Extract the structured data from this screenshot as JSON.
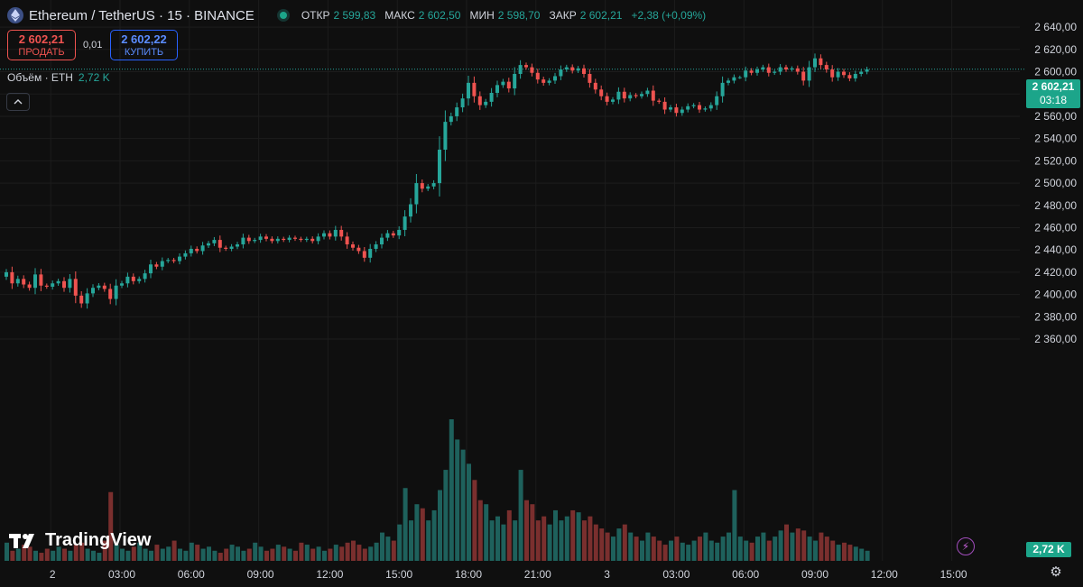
{
  "header": {
    "symbol": "Ethereum / TetherUS · 15 · BINANCE",
    "ohlc": [
      {
        "key": "ОТКР",
        "value": "2 599,83"
      },
      {
        "key": "МАКС",
        "value": "2 602,50"
      },
      {
        "key": "МИН",
        "value": "2 598,70"
      },
      {
        "key": "ЗАКР",
        "value": "2 602,21"
      }
    ],
    "change": "+2,38 (+0,09%)"
  },
  "trade": {
    "sell_price": "2 602,21",
    "sell_label": "ПРОДАТЬ",
    "spread": "0,01",
    "buy_price": "2 602,22",
    "buy_label": "КУПИТЬ"
  },
  "volume_legend": {
    "label": "Объём · ETH",
    "value": "2,72 K"
  },
  "last_price": {
    "price": "2 602,21",
    "countdown": "03:18"
  },
  "volume_badge": "2,72 K",
  "watermark": "TradingView",
  "colors": {
    "up": "#26a69a",
    "down": "#ef5350",
    "background": "#0f0f0f"
  },
  "chart_data": {
    "type": "candlestick",
    "ylim": [
      2345,
      2645
    ],
    "y_ticks": [
      2360,
      2380,
      2400,
      2420,
      2440,
      2460,
      2480,
      2500,
      2520,
      2540,
      2560,
      2580,
      2600,
      2620,
      2640
    ],
    "y_tick_labels": [
      "2 360,00",
      "2 380,00",
      "2 400,00",
      "2 420,00",
      "2 440,00",
      "2 460,00",
      "2 480,00",
      "2 500,00",
      "2 520,00",
      "2 540,00",
      "2 560,00",
      "2 580,00",
      "2 600,00",
      "2 620,00",
      "2 640,00"
    ],
    "x_tick_labels": [
      {
        "label": "2",
        "bar": 8
      },
      {
        "label": "03:00",
        "bar": 20
      },
      {
        "label": "06:00",
        "bar": 32
      },
      {
        "label": "09:00",
        "bar": 44
      },
      {
        "label": "12:00",
        "bar": 56
      },
      {
        "label": "15:00",
        "bar": 68
      },
      {
        "label": "18:00",
        "bar": 80
      },
      {
        "label": "21:00",
        "bar": 92
      },
      {
        "label": "3",
        "bar": 104
      },
      {
        "label": "03:00",
        "bar": 116
      },
      {
        "label": "06:00",
        "bar": 128
      },
      {
        "label": "09:00",
        "bar": 140
      },
      {
        "label": "12:00",
        "bar": 152
      },
      {
        "label": "15:00",
        "bar": 164
      }
    ],
    "close_line": 2602.21,
    "closes": [
      2420,
      2410,
      2414,
      2409,
      2406,
      2418,
      2408,
      2407,
      2410,
      2412,
      2406,
      2414,
      2399,
      2392,
      2401,
      2406,
      2408,
      2405,
      2396,
      2408,
      2410,
      2416,
      2412,
      2414,
      2419,
      2427,
      2425,
      2430,
      2431,
      2430,
      2434,
      2437,
      2441,
      2439,
      2444,
      2446,
      2449,
      2442,
      2441,
      2443,
      2445,
      2451,
      2448,
      2449,
      2452,
      2450,
      2448,
      2450,
      2449,
      2451,
      2450,
      2449,
      2450,
      2448,
      2452,
      2455,
      2452,
      2458,
      2452,
      2445,
      2442,
      2439,
      2433,
      2441,
      2445,
      2451,
      2455,
      2453,
      2458,
      2470,
      2481,
      2500,
      2495,
      2497,
      2500,
      2530,
      2555,
      2560,
      2568,
      2576,
      2590,
      2578,
      2570,
      2573,
      2581,
      2588,
      2591,
      2585,
      2598,
      2606,
      2604,
      2599,
      2593,
      2590,
      2592,
      2596,
      2602,
      2604,
      2601,
      2603,
      2598,
      2590,
      2584,
      2578,
      2573,
      2575,
      2582,
      2576,
      2579,
      2578,
      2580,
      2583,
      2574,
      2573,
      2566,
      2568,
      2563,
      2566,
      2569,
      2570,
      2566,
      2567,
      2570,
      2578,
      2590,
      2592,
      2595,
      2595,
      2601,
      2599,
      2602,
      2604,
      2599,
      2600,
      2604,
      2602,
      2603,
      2600,
      2592,
      2604,
      2612,
      2606,
      2602,
      2595,
      2600,
      2597,
      2594,
      2598,
      2600,
      2602.21
    ],
    "volumes": [
      9,
      5,
      6,
      8,
      7,
      5,
      4,
      6,
      5,
      7,
      6,
      5,
      8,
      9,
      6,
      5,
      4,
      10,
      34,
      8,
      6,
      5,
      7,
      9,
      6,
      5,
      8,
      6,
      7,
      10,
      6,
      5,
      9,
      8,
      6,
      7,
      5,
      4,
      6,
      8,
      7,
      5,
      6,
      9,
      7,
      5,
      6,
      8,
      7,
      6,
      5,
      9,
      8,
      6,
      7,
      5,
      6,
      8,
      7,
      9,
      10,
      8,
      6,
      7,
      9,
      14,
      12,
      10,
      18,
      36,
      20,
      28,
      26,
      20,
      25,
      35,
      45,
      70,
      60,
      55,
      48,
      40,
      30,
      28,
      20,
      22,
      18,
      25,
      20,
      45,
      30,
      28,
      20,
      22,
      18,
      25,
      20,
      22,
      25,
      24,
      20,
      22,
      18,
      16,
      14,
      12,
      16,
      18,
      14,
      12,
      10,
      14,
      12,
      10,
      8,
      10,
      12,
      9,
      8,
      10,
      12,
      14,
      10,
      9,
      12,
      14,
      35,
      12,
      10,
      9,
      12,
      14,
      10,
      12,
      15,
      18,
      14,
      16,
      15,
      12,
      10,
      14,
      12,
      10,
      8,
      9,
      8,
      7,
      6,
      5
    ]
  }
}
